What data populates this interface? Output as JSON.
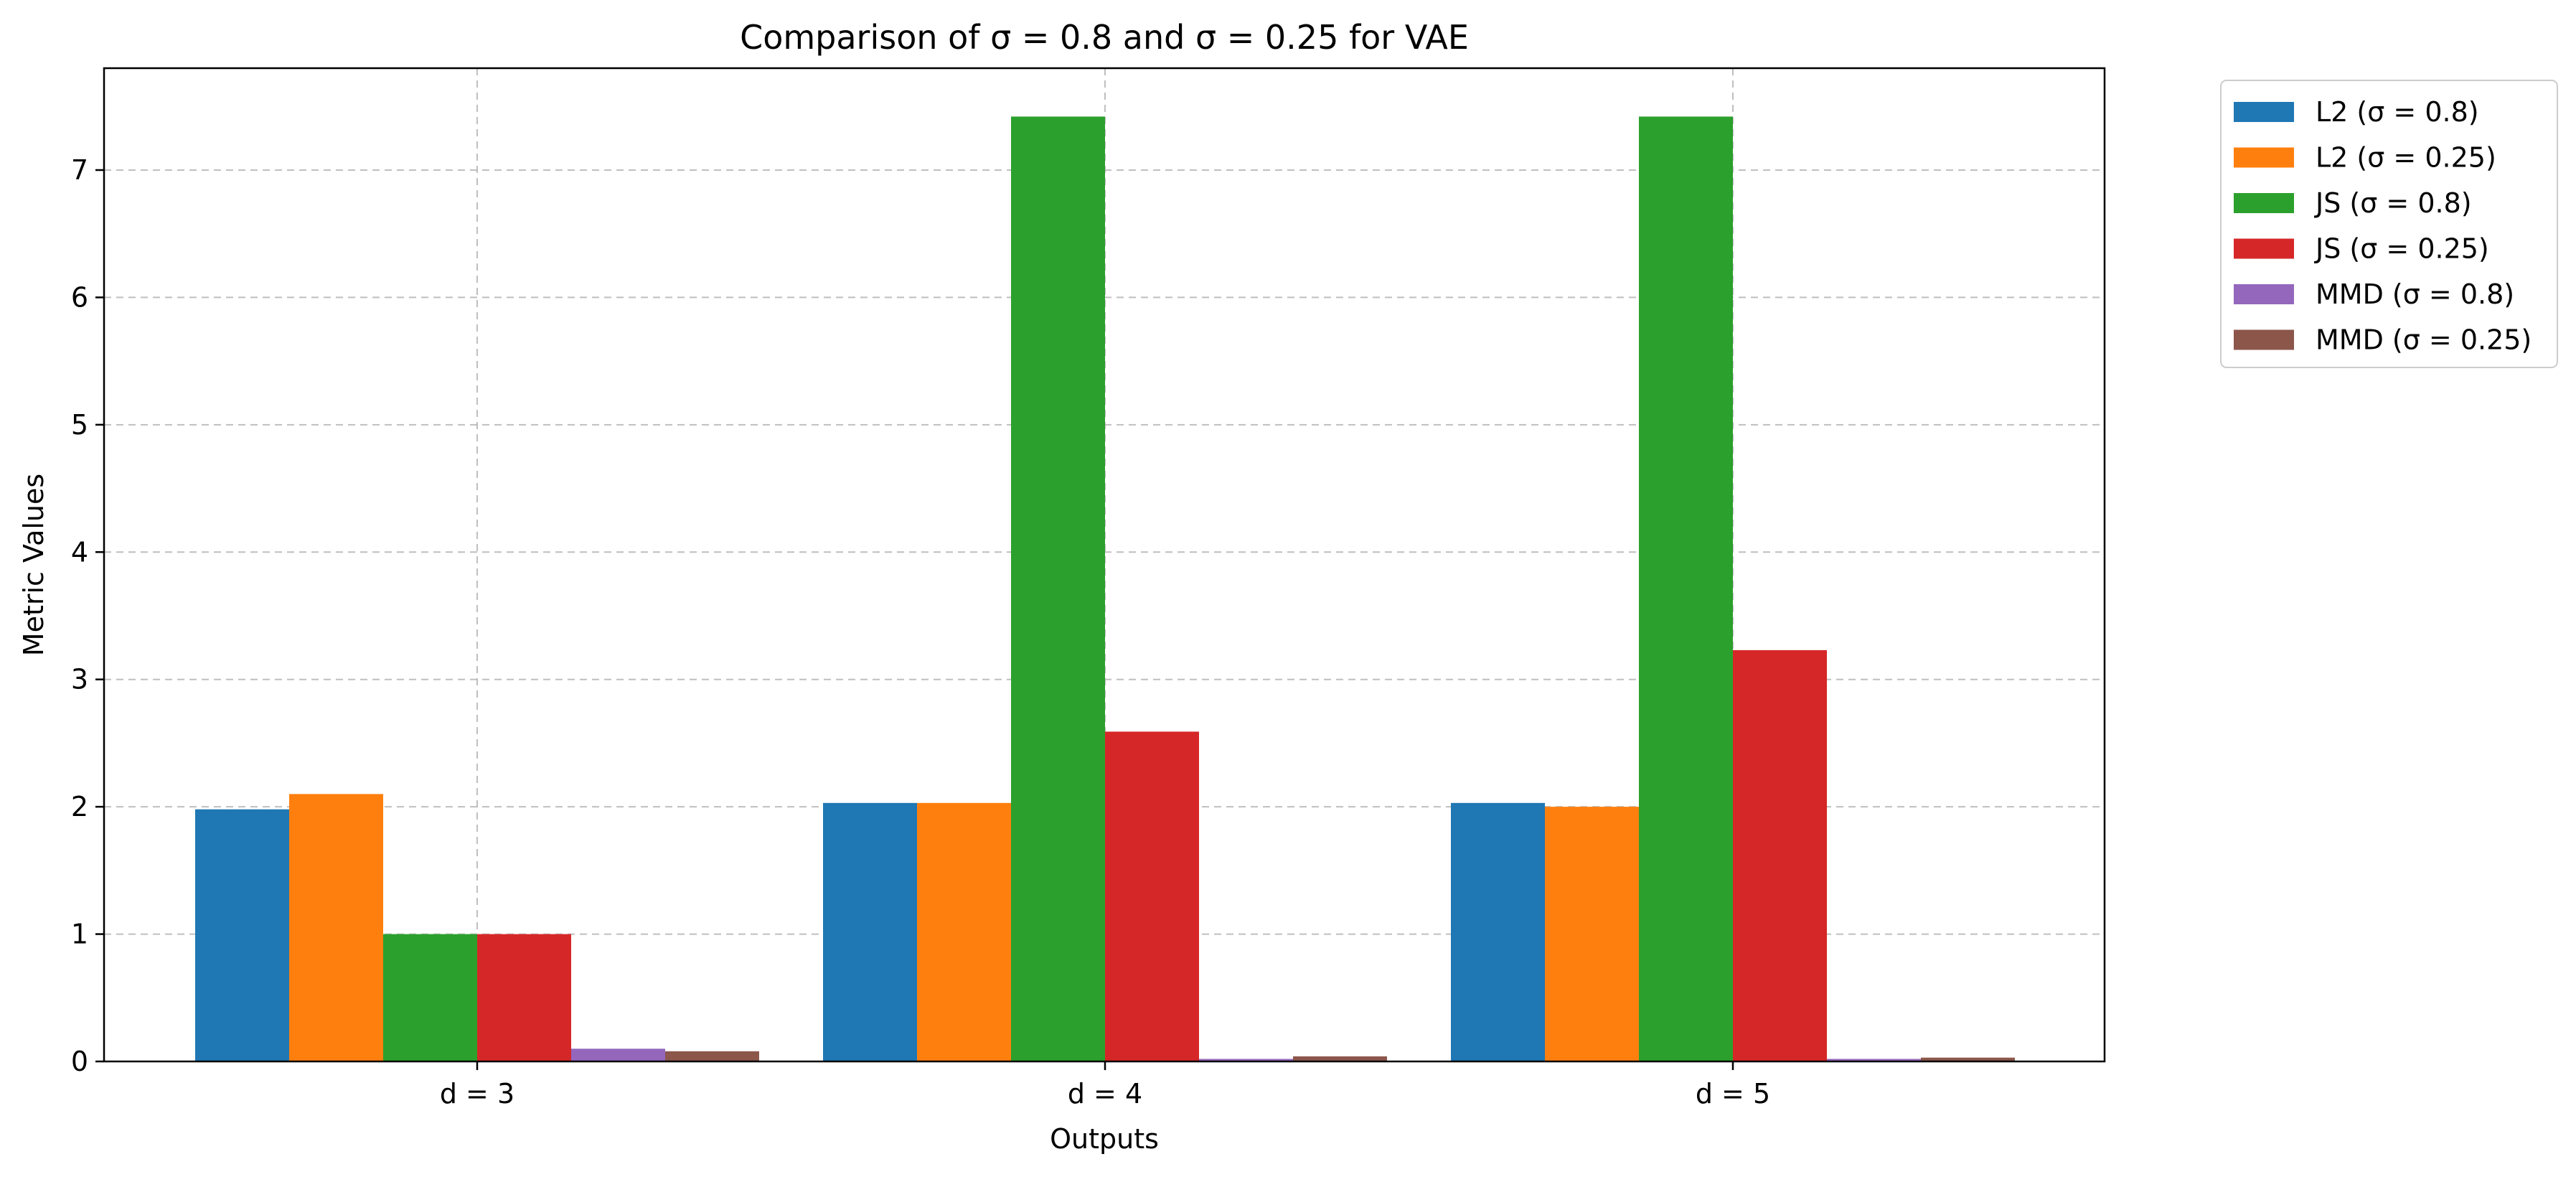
{
  "chart_data": {
    "type": "bar",
    "title": "Comparison of σ = 0.8 and σ = 0.25 for VAE",
    "xlabel": "Outputs",
    "ylabel": "Metric Values",
    "categories": [
      "d = 3",
      "d = 4",
      "d = 5"
    ],
    "ylim": [
      0,
      7.8
    ],
    "yticks": [
      0,
      1,
      2,
      3,
      4,
      5,
      6,
      7
    ],
    "grid": true,
    "legend_position": "outside-top-right",
    "series": [
      {
        "name": "L2 (σ = 0.8)",
        "color": "#1f77b4",
        "values": [
          1.98,
          2.03,
          2.03
        ]
      },
      {
        "name": "L2 (σ = 0.25)",
        "color": "#ff7f0e",
        "values": [
          2.1,
          2.03,
          2.0
        ]
      },
      {
        "name": "JS (σ = 0.8)",
        "color": "#2ca02c",
        "values": [
          1.0,
          7.42,
          7.42
        ]
      },
      {
        "name": "JS (σ = 0.25)",
        "color": "#d62728",
        "values": [
          1.0,
          2.59,
          3.23
        ]
      },
      {
        "name": "MMD (σ = 0.8)",
        "color": "#9467bd",
        "values": [
          0.1,
          0.02,
          0.02
        ]
      },
      {
        "name": "MMD (σ = 0.25)",
        "color": "#8c564b",
        "values": [
          0.08,
          0.04,
          0.03
        ]
      }
    ]
  }
}
